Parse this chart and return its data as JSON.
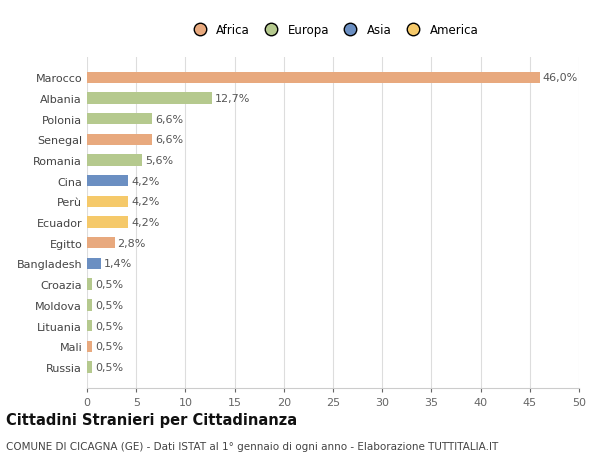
{
  "categories": [
    "Russia",
    "Mali",
    "Lituania",
    "Moldova",
    "Croazia",
    "Bangladesh",
    "Egitto",
    "Ecuador",
    "Perù",
    "Cina",
    "Romania",
    "Senegal",
    "Polonia",
    "Albania",
    "Marocco"
  ],
  "values": [
    0.5,
    0.5,
    0.5,
    0.5,
    0.5,
    1.4,
    2.8,
    4.2,
    4.2,
    4.2,
    5.6,
    6.6,
    6.6,
    12.7,
    46.0
  ],
  "labels": [
    "0,5%",
    "0,5%",
    "0,5%",
    "0,5%",
    "0,5%",
    "1,4%",
    "2,8%",
    "4,2%",
    "4,2%",
    "4,2%",
    "5,6%",
    "6,6%",
    "6,6%",
    "12,7%",
    "46,0%"
  ],
  "colors": [
    "#b5c98e",
    "#e8a97e",
    "#b5c98e",
    "#b5c98e",
    "#b5c98e",
    "#6b8fc2",
    "#e8a97e",
    "#f5c96a",
    "#f5c96a",
    "#6b8fc2",
    "#b5c98e",
    "#e8a97e",
    "#b5c98e",
    "#b5c98e",
    "#e8a97e"
  ],
  "continent_colors": {
    "Africa": "#e8a97e",
    "Europa": "#b5c98e",
    "Asia": "#6b8fc2",
    "America": "#f5c96a"
  },
  "xlim": [
    0,
    50
  ],
  "xticks": [
    0,
    5,
    10,
    15,
    20,
    25,
    30,
    35,
    40,
    45,
    50
  ],
  "title": "Cittadini Stranieri per Cittadinanza",
  "subtitle": "COMUNE DI CICAGNA (GE) - Dati ISTAT al 1° gennaio di ogni anno - Elaborazione TUTTITALIA.IT",
  "bg_color": "#ffffff",
  "grid_color": "#dddddd",
  "bar_height": 0.55,
  "label_fontsize": 8,
  "title_fontsize": 10.5,
  "subtitle_fontsize": 7.5
}
